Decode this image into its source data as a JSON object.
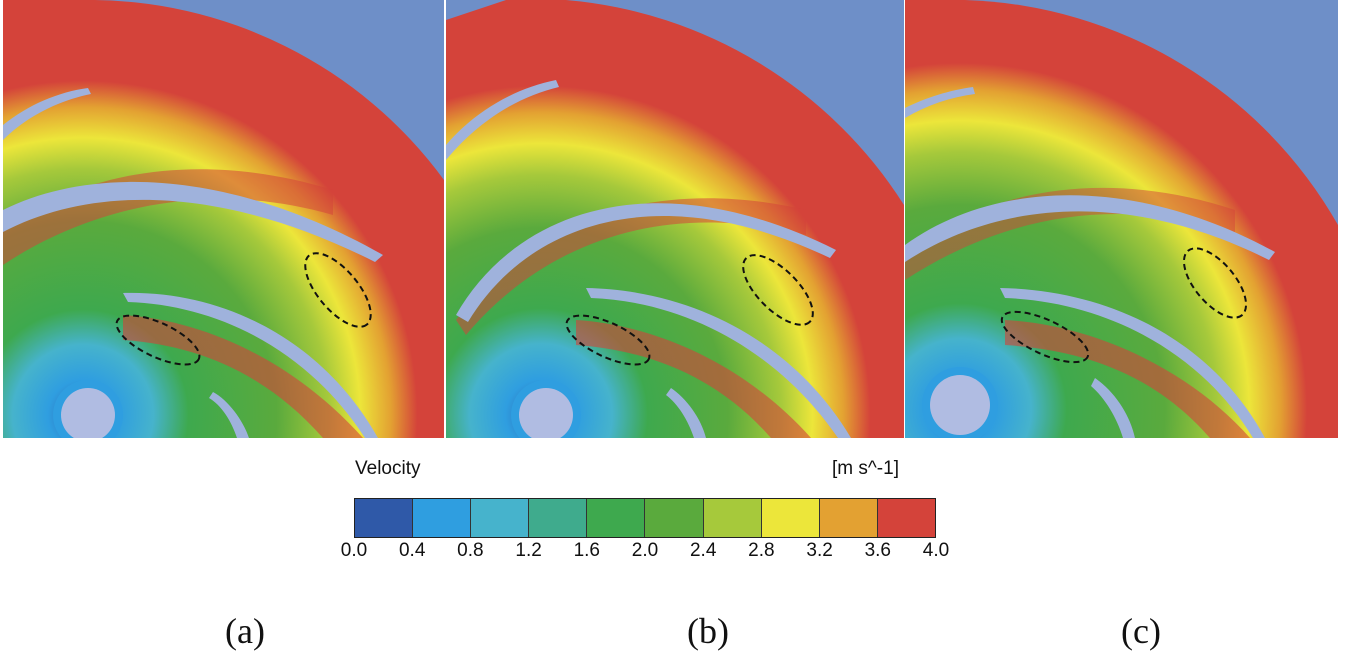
{
  "figure": {
    "panels": [
      {
        "id": "a",
        "caption": "(a)"
      },
      {
        "id": "b",
        "caption": "(b)"
      },
      {
        "id": "c",
        "caption": "(c)"
      }
    ],
    "legend": {
      "title": "Velocity",
      "unit": "[m s^-1]",
      "ticks": [
        "0.0",
        "0.4",
        "0.8",
        "1.2",
        "1.6",
        "2.0",
        "2.4",
        "2.8",
        "3.2",
        "3.6",
        "4.0"
      ],
      "colors": [
        "#2f59a8",
        "#2f9ee0",
        "#46b3cc",
        "#3fab8d",
        "#3ea94e",
        "#5aaa3d",
        "#a6c93b",
        "#ece63a",
        "#e3a132",
        "#d4433a"
      ]
    },
    "colors": {
      "background_blue": "#6e8fc8",
      "hub": "#b0bce2",
      "blade": "#9fb2dc"
    }
  }
}
